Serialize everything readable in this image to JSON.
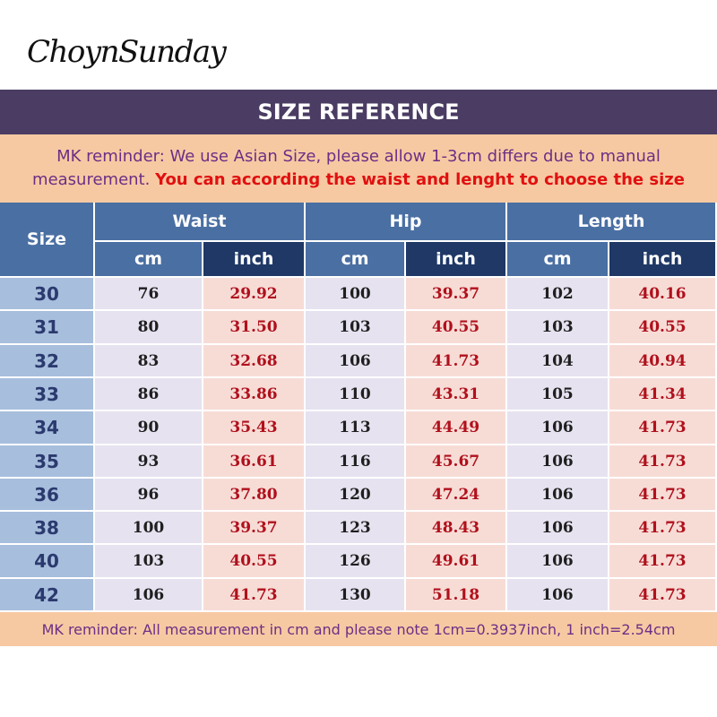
{
  "brand": "ChoynSunday",
  "title": "SIZE REFERENCE",
  "note_top": {
    "text": "MK reminder: We use Asian Size, please allow 1-3cm differs due to manual measurement. ",
    "emphasis": "You can according the waist and lenght to choose the size"
  },
  "table": {
    "size_header": "Size",
    "groups": [
      "Waist",
      "Hip",
      "Length"
    ],
    "units": [
      "cm",
      "inch",
      "cm",
      "inch",
      "cm",
      "inch"
    ],
    "rows": [
      [
        "30",
        "76",
        "29.92",
        "100",
        "39.37",
        "102",
        "40.16"
      ],
      [
        "31",
        "80",
        "31.50",
        "103",
        "40.55",
        "103",
        "40.55"
      ],
      [
        "32",
        "83",
        "32.68",
        "106",
        "41.73",
        "104",
        "40.94"
      ],
      [
        "33",
        "86",
        "33.86",
        "110",
        "43.31",
        "105",
        "41.34"
      ],
      [
        "34",
        "90",
        "35.43",
        "113",
        "44.49",
        "106",
        "41.73"
      ],
      [
        "35",
        "93",
        "36.61",
        "116",
        "45.67",
        "106",
        "41.73"
      ],
      [
        "36",
        "96",
        "37.80",
        "120",
        "47.24",
        "106",
        "41.73"
      ],
      [
        "38",
        "100",
        "39.37",
        "123",
        "48.43",
        "106",
        "41.73"
      ],
      [
        "40",
        "103",
        "40.55",
        "126",
        "49.61",
        "106",
        "41.73"
      ],
      [
        "42",
        "106",
        "41.73",
        "130",
        "51.18",
        "106",
        "41.73"
      ]
    ]
  },
  "note_bottom": "MK reminder: All measurement in cm and please note 1cm=0.3937inch, 1 inch=2.54cm",
  "colors": {
    "title_bg": "#4a3c63",
    "note_bg": "#f7c9a2",
    "note_text": "#6b2f86",
    "emphasis": "#e01010",
    "header_light": "#4a6fa3",
    "header_dark": "#1f3866",
    "size_bg": "#a7bedd",
    "cm_bg": "#e6e2f0",
    "inch_bg": "#f7dcd6",
    "inch_text": "#b0101c"
  }
}
